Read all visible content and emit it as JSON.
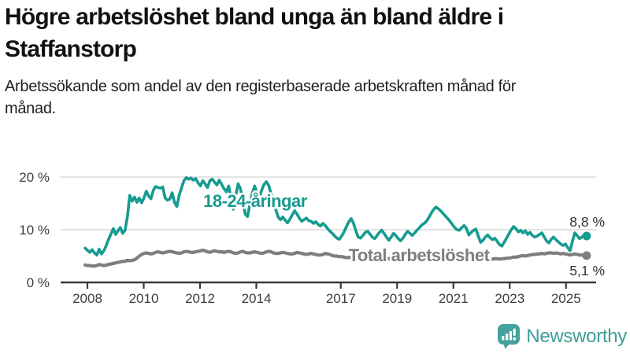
{
  "title": "Högre arbetslöshet bland unga än bland äldre i Staffanstorp",
  "subtitle": "Arbetssökande som andel av den registerbaserade arbetskraften månad för månad.",
  "branding": {
    "name": "Newsworthy",
    "icon": "newsworthy-chart-bubble-icon",
    "brand_color": "#45a19b"
  },
  "chart_data": {
    "type": "line",
    "x_unit": "month",
    "x_start": "2008-01",
    "x_end": "2025-10",
    "x_ticks": [
      2008,
      2010,
      2012,
      2014,
      2017,
      2019,
      2021,
      2023,
      2025
    ],
    "y_ticks": [
      0,
      10,
      20
    ],
    "y_tick_labels": [
      "0 %",
      "10 %",
      "20 %"
    ],
    "ylim": [
      0,
      21
    ],
    "grid": "horizontal",
    "colors": {
      "grid": "#e3e3e3",
      "axis": "#3a3a3a",
      "tick_text": "#3d3d3d",
      "value_text": "#333333"
    },
    "series": [
      {
        "id": "youth",
        "name": "18-24-åringar",
        "color": "#169b90",
        "end_label": "8,8 %",
        "end_value": 8.8,
        "values": [
          6.5,
          6.1,
          5.7,
          6.2,
          5.6,
          5.2,
          6.3,
          5.4,
          6.0,
          7.0,
          8.2,
          9.2,
          10.2,
          9.1,
          9.8,
          10.4,
          9.3,
          9.9,
          12.5,
          16.5,
          15.4,
          16.2,
          15.2,
          16.0,
          15.1,
          16.0,
          17.3,
          16.4,
          15.9,
          17.5,
          18.2,
          18.0,
          17.9,
          18.1,
          16.0,
          15.6,
          15.8,
          17.0,
          15.2,
          14.4,
          16.6,
          18.0,
          19.3,
          19.9,
          19.6,
          19.8,
          19.4,
          19.7,
          18.9,
          18.3,
          19.3,
          18.7,
          18.0,
          19.3,
          19.6,
          19.0,
          18.5,
          19.4,
          18.6,
          17.8,
          17.2,
          18.3,
          16.0,
          13.9,
          16.5,
          18.7,
          17.8,
          15.5,
          13.0,
          12.5,
          14.8,
          16.9,
          18.3,
          17.0,
          16.2,
          17.5,
          18.6,
          19.1,
          18.4,
          16.8,
          15.2,
          13.8,
          12.4,
          11.9,
          12.4,
          11.8,
          11.3,
          12.0,
          12.8,
          13.6,
          13.0,
          12.2,
          11.6,
          11.9,
          12.2,
          11.7,
          11.6,
          11.2,
          11.5,
          11.0,
          10.7,
          11.2,
          10.8,
          10.2,
          9.7,
          9.3,
          8.8,
          8.4,
          8.2,
          8.8,
          9.6,
          10.6,
          11.5,
          12.1,
          11.2,
          9.8,
          8.6,
          8.4,
          8.9,
          9.5,
          9.7,
          9.2,
          8.6,
          8.3,
          8.9,
          9.5,
          9.9,
          9.3,
          8.6,
          8.0,
          8.6,
          9.3,
          8.9,
          8.3,
          7.9,
          8.4,
          9.1,
          9.7,
          9.3,
          8.9,
          9.4,
          9.9,
          10.4,
          10.9,
          11.2,
          11.6,
          12.3,
          13.1,
          13.8,
          14.3,
          14.0,
          13.6,
          13.1,
          12.6,
          12.1,
          11.6,
          11.0,
          10.4,
          10.0,
          9.9,
          10.4,
          10.8,
          10.2,
          9.0,
          9.5,
          9.9,
          10.1,
          8.8,
          7.6,
          8.0,
          8.6,
          9.0,
          8.5,
          8.1,
          8.4,
          7.8,
          7.2,
          6.9,
          7.6,
          8.4,
          9.2,
          10.0,
          10.6,
          10.2,
          9.6,
          9.9,
          9.4,
          9.8,
          9.1,
          9.5,
          8.9,
          8.6,
          8.8,
          9.1,
          9.4,
          8.6,
          7.9,
          7.5,
          8.2,
          8.6,
          8.1,
          7.7,
          7.3,
          7.0,
          7.3,
          6.6,
          6.0,
          7.8,
          9.4,
          8.9,
          8.3,
          8.6,
          9.0,
          8.8
        ]
      },
      {
        "id": "total",
        "name": "Total arbetslöshet",
        "color": "#7e7e7e",
        "end_label": "5,1 %",
        "end_value": 5.1,
        "values": [
          3.3,
          3.2,
          3.2,
          3.1,
          3.1,
          3.2,
          3.4,
          3.3,
          3.2,
          3.3,
          3.4,
          3.5,
          3.6,
          3.7,
          3.8,
          3.9,
          4.0,
          4.0,
          4.2,
          4.1,
          4.2,
          4.3,
          4.6,
          5.0,
          5.3,
          5.5,
          5.6,
          5.5,
          5.4,
          5.5,
          5.7,
          5.8,
          5.7,
          5.6,
          5.7,
          5.8,
          5.9,
          5.8,
          5.7,
          5.6,
          5.5,
          5.6,
          5.8,
          5.9,
          5.8,
          5.7,
          5.7,
          5.8,
          5.9,
          6.0,
          6.1,
          6.0,
          5.8,
          5.7,
          5.9,
          6.0,
          5.9,
          5.8,
          5.8,
          5.7,
          5.8,
          5.9,
          5.8,
          5.6,
          5.5,
          5.6,
          5.8,
          5.9,
          5.7,
          5.6,
          5.6,
          5.7,
          5.8,
          5.7,
          5.6,
          5.5,
          5.6,
          5.8,
          5.9,
          5.8,
          5.6,
          5.5,
          5.5,
          5.6,
          5.7,
          5.6,
          5.5,
          5.4,
          5.4,
          5.5,
          5.7,
          5.6,
          5.5,
          5.4,
          5.3,
          5.4,
          5.5,
          5.4,
          5.3,
          5.2,
          5.2,
          5.3,
          5.5,
          5.4,
          5.3,
          5.1,
          5.0,
          5.0,
          4.9,
          4.9,
          4.8,
          4.7,
          4.7,
          4.8,
          5.0,
          4.9,
          4.8,
          4.7,
          4.6,
          4.7,
          4.7,
          4.6,
          4.6,
          4.5,
          4.5,
          4.6,
          4.8,
          4.7,
          4.6,
          4.5,
          4.6,
          4.6,
          4.7,
          4.6,
          4.6,
          4.7,
          4.7,
          4.8,
          5.0,
          4.9,
          4.9,
          5.0,
          5.1,
          5.2,
          5.3,
          5.4,
          5.6,
          5.7,
          5.8,
          5.8,
          5.8,
          5.7,
          5.6,
          5.6,
          5.5,
          5.4,
          5.4,
          5.3,
          5.3,
          5.2,
          5.2,
          5.1,
          5.1,
          5.0,
          5.0,
          4.9,
          4.8,
          4.8,
          4.7,
          4.6,
          4.6,
          4.5,
          4.5,
          4.4,
          4.5,
          4.5,
          4.4,
          4.5,
          4.5,
          4.6,
          4.6,
          4.7,
          4.8,
          4.8,
          4.9,
          5.0,
          5.1,
          5.0,
          5.1,
          5.2,
          5.3,
          5.3,
          5.4,
          5.4,
          5.5,
          5.4,
          5.5,
          5.6,
          5.6,
          5.5,
          5.6,
          5.5,
          5.4,
          5.5,
          5.4,
          5.3,
          5.2,
          5.3,
          5.4,
          5.3,
          5.2,
          5.2,
          5.1,
          5.1
        ]
      }
    ]
  }
}
